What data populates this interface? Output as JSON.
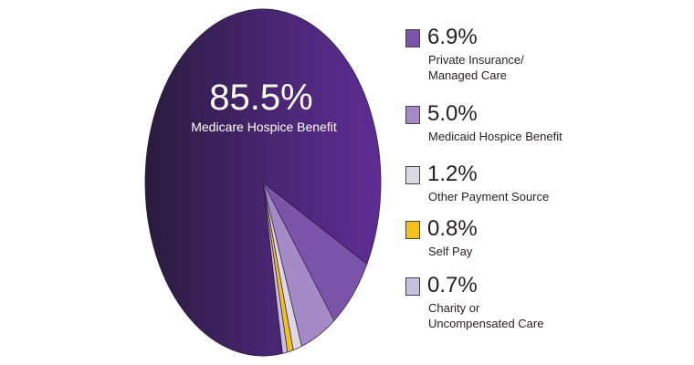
{
  "chart_data": {
    "type": "pie",
    "slices": [
      {
        "label": "Medicare Hospice Benefit",
        "pct_label": "85.5%",
        "value": 85.5,
        "color": "#5b2d8e"
      },
      {
        "label": "Private Insurance/ Managed Care",
        "pct_label": "6.9%",
        "value": 6.9,
        "color": "#7b54aa"
      },
      {
        "label": "Medicaid Hospice Benefit",
        "pct_label": "5.0%",
        "value": 5.0,
        "color": "#a48ac7"
      },
      {
        "label": "Other Payment Source",
        "pct_label": "1.2%",
        "value": 1.2,
        "color": "#dcd9e2"
      },
      {
        "label": "Self Pay",
        "pct_label": "0.8%",
        "value": 0.8,
        "color": "#f3c21a"
      },
      {
        "label": "Charity or Uncompensated Care",
        "pct_label": "0.7%",
        "value": 0.7,
        "color": "#c9bde0"
      }
    ]
  }
}
